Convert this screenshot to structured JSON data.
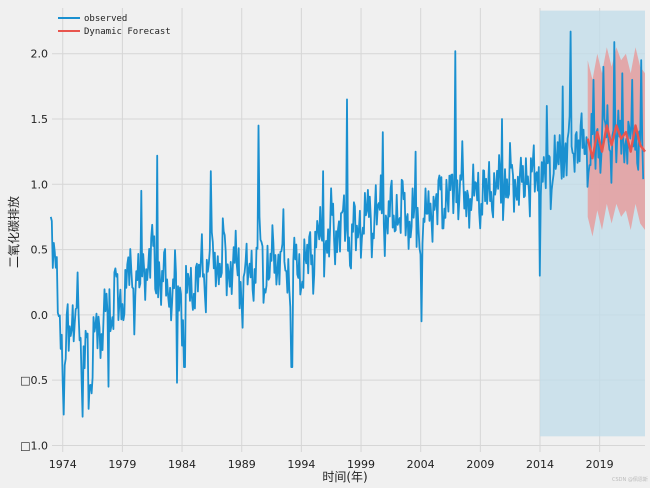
{
  "chart_data": {
    "type": "line",
    "xlabel": "时间(年)",
    "ylabel": "二氧化碳排放",
    "xlim": [
      1973.1,
      2022.8
    ],
    "ylim": [
      -1.05,
      2.35
    ],
    "x_ticks": [
      {
        "value": 1974,
        "label": "1974"
      },
      {
        "value": 1979,
        "label": "1979"
      },
      {
        "value": 1984,
        "label": "1984"
      },
      {
        "value": 1989,
        "label": "1989"
      },
      {
        "value": 1994,
        "label": "1994"
      },
      {
        "value": 1999,
        "label": "1999"
      },
      {
        "value": 2004,
        "label": "2004"
      },
      {
        "value": 2009,
        "label": "2009"
      },
      {
        "value": 2014,
        "label": "2014"
      },
      {
        "value": 2019,
        "label": "2019"
      }
    ],
    "y_ticks": [
      {
        "value": 2.0,
        "label": "2.0"
      },
      {
        "value": 1.5,
        "label": "1.5"
      },
      {
        "value": 1.0,
        "label": "1.0"
      },
      {
        "value": 0.5,
        "label": "0.5"
      },
      {
        "value": 0.0,
        "label": "0.0"
      },
      {
        "value": -0.5,
        "label": "□0.5"
      },
      {
        "value": -1.0,
        "label": "□1.0"
      }
    ],
    "grid": true,
    "legend_position": "top-left",
    "shaded_region": {
      "x": [
        2014.0,
        2022.8
      ],
      "y": [
        -0.93,
        2.33
      ],
      "color": "#c0dcea"
    },
    "series": [
      {
        "name": "observed",
        "color": "#1a90d0",
        "x_start": 1973.0,
        "x_step": 0.0833,
        "anchor_points": [
          [
            1973.0,
            0.62
          ],
          [
            1973.3,
            0.55
          ],
          [
            1973.6,
            0.1
          ],
          [
            1973.9,
            -0.25
          ],
          [
            1974.1,
            -0.65
          ],
          [
            1974.4,
            0.02
          ],
          [
            1974.8,
            -0.2
          ],
          [
            1975.2,
            0.2
          ],
          [
            1975.6,
            -0.4
          ],
          [
            1976.0,
            -0.12
          ],
          [
            1976.4,
            -0.55
          ],
          [
            1976.8,
            0.05
          ],
          [
            1977.2,
            -0.3
          ],
          [
            1977.6,
            0.18
          ],
          [
            1978.0,
            -0.1
          ],
          [
            1978.5,
            0.3
          ],
          [
            1979.0,
            -0.05
          ],
          [
            1979.5,
            0.45
          ],
          [
            1980.0,
            0.1
          ],
          [
            1980.5,
            0.4
          ],
          [
            1981.0,
            0.25
          ],
          [
            1981.5,
            0.6
          ],
          [
            1982.0,
            0.15
          ],
          [
            1982.5,
            0.4
          ],
          [
            1983.0,
            0.05
          ],
          [
            1983.5,
            0.35
          ],
          [
            1984.0,
            -0.1
          ],
          [
            1984.5,
            0.3
          ],
          [
            1985.0,
            0.1
          ],
          [
            1985.5,
            0.45
          ],
          [
            1986.0,
            0.2
          ],
          [
            1986.5,
            0.55
          ],
          [
            1987.0,
            0.25
          ],
          [
            1987.5,
            0.6
          ],
          [
            1988.0,
            0.2
          ],
          [
            1988.5,
            0.55
          ],
          [
            1989.0,
            0.1
          ],
          [
            1989.5,
            0.45
          ],
          [
            1990.0,
            0.2
          ],
          [
            1990.5,
            0.65
          ],
          [
            1991.0,
            0.15
          ],
          [
            1991.5,
            0.55
          ],
          [
            1992.0,
            0.3
          ],
          [
            1992.5,
            0.6
          ],
          [
            1993.0,
            0.1
          ],
          [
            1993.5,
            0.5
          ],
          [
            1994.0,
            0.2
          ],
          [
            1994.5,
            0.55
          ],
          [
            1995.0,
            0.35
          ],
          [
            1995.5,
            0.75
          ],
          [
            1996.0,
            0.4
          ],
          [
            1996.5,
            0.8
          ],
          [
            1997.0,
            0.5
          ],
          [
            1997.5,
            0.85
          ],
          [
            1998.0,
            0.45
          ],
          [
            1998.5,
            0.75
          ],
          [
            1999.0,
            0.55
          ],
          [
            1999.5,
            0.9
          ],
          [
            2000.0,
            0.6
          ],
          [
            2000.5,
            0.95
          ],
          [
            2001.0,
            0.6
          ],
          [
            2001.5,
            0.9
          ],
          [
            2002.0,
            0.65
          ],
          [
            2002.5,
            0.95
          ],
          [
            2003.0,
            0.6
          ],
          [
            2003.5,
            0.85
          ],
          [
            2004.0,
            0.4
          ],
          [
            2004.5,
            0.9
          ],
          [
            2005.0,
            0.7
          ],
          [
            2005.5,
            1.0
          ],
          [
            2006.0,
            0.75
          ],
          [
            2006.5,
            1.05
          ],
          [
            2007.0,
            0.85
          ],
          [
            2007.5,
            1.1
          ],
          [
            2008.0,
            0.75
          ],
          [
            2008.5,
            1.05
          ],
          [
            2009.0,
            0.8
          ],
          [
            2009.5,
            1.05
          ],
          [
            2010.0,
            0.85
          ],
          [
            2010.5,
            1.1
          ],
          [
            2011.0,
            0.85
          ],
          [
            2011.5,
            1.15
          ],
          [
            2012.0,
            0.9
          ],
          [
            2012.5,
            1.1
          ],
          [
            2013.0,
            0.95
          ],
          [
            2013.5,
            1.15
          ],
          [
            2014.0,
            0.95
          ],
          [
            2014.5,
            1.2
          ],
          [
            2015.0,
            1.0
          ],
          [
            2015.5,
            1.3
          ],
          [
            2016.0,
            1.1
          ],
          [
            2016.5,
            1.5
          ],
          [
            2017.0,
            1.15
          ],
          [
            2017.5,
            1.45
          ],
          [
            2018.0,
            1.1
          ],
          [
            2018.5,
            1.4
          ],
          [
            2019.0,
            1.2
          ],
          [
            2019.5,
            1.5
          ],
          [
            2020.0,
            1.2
          ],
          [
            2020.5,
            1.45
          ],
          [
            2021.0,
            1.2
          ],
          [
            2021.5,
            1.4
          ],
          [
            2022.0,
            1.25
          ],
          [
            2022.4,
            1.35
          ],
          [
            2022.7,
            1.2
          ]
        ],
        "spikes": [
          [
            1975.7,
            -0.78
          ],
          [
            1976.2,
            -0.72
          ],
          [
            1977.8,
            -0.55
          ],
          [
            1980.6,
            0.95
          ],
          [
            1981.9,
            1.22
          ],
          [
            1983.6,
            -0.52
          ],
          [
            1984.2,
            -0.4
          ],
          [
            1986.4,
            1.1
          ],
          [
            1988.8,
            0.05
          ],
          [
            1990.4,
            1.45
          ],
          [
            1993.2,
            -0.4
          ],
          [
            1995.8,
            1.1
          ],
          [
            1997.8,
            1.65
          ],
          [
            2000.8,
            1.4
          ],
          [
            2003.6,
            1.25
          ],
          [
            2004.1,
            -0.05
          ],
          [
            2006.9,
            2.02
          ],
          [
            2010.8,
            1.5
          ],
          [
            2013.2,
            1.2
          ],
          [
            2014.0,
            0.3
          ],
          [
            2014.6,
            1.6
          ],
          [
            2015.9,
            1.75
          ],
          [
            2016.6,
            2.17
          ],
          [
            2017.1,
            1.4
          ],
          [
            2018.5,
            1.8
          ],
          [
            2019.3,
            1.9
          ],
          [
            2020.2,
            2.09
          ],
          [
            2020.9,
            1.85
          ],
          [
            2021.7,
            1.8
          ],
          [
            2022.5,
            1.95
          ]
        ]
      },
      {
        "name": "Dynamic Forecast",
        "color": "#e8554e",
        "x": [
          2018.0,
          2018.4,
          2018.8,
          2019.2,
          2019.6,
          2020.0,
          2020.4,
          2020.8,
          2021.2,
          2021.6,
          2022.0,
          2022.4,
          2022.8
        ],
        "y": [
          1.35,
          1.2,
          1.4,
          1.25,
          1.45,
          1.3,
          1.45,
          1.35,
          1.4,
          1.25,
          1.45,
          1.3,
          1.25
        ],
        "ci_upper": [
          1.95,
          1.8,
          2.0,
          1.85,
          2.05,
          1.9,
          2.05,
          1.95,
          2.0,
          1.85,
          2.05,
          1.9,
          1.85
        ],
        "ci_lower": [
          0.75,
          0.6,
          0.8,
          0.65,
          0.85,
          0.7,
          0.85,
          0.75,
          0.8,
          0.65,
          0.85,
          0.7,
          0.65
        ],
        "ci_color": "#e79a9a"
      }
    ]
  },
  "watermark": "CSDN @佩恩斯"
}
